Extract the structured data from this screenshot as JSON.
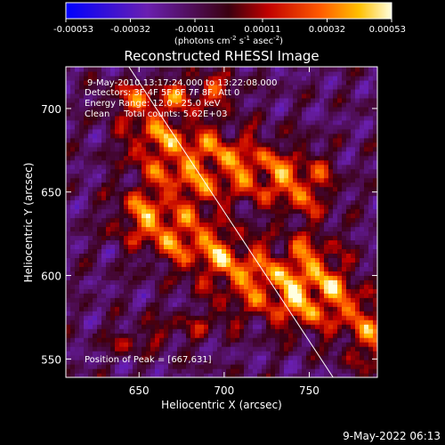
{
  "chart_data": {
    "type": "heatmap",
    "title": "Reconstructed RHESSI Image",
    "xlabel": "Heliocentric X (arcsec)",
    "ylabel": "Heliocentric Y (arcsec)",
    "xlim": [
      607,
      790
    ],
    "ylim": [
      539,
      725
    ],
    "x_ticks": [
      650,
      700,
      750
    ],
    "y_ticks": [
      550,
      600,
      650,
      700
    ],
    "colorbar": {
      "range": [
        -0.00053,
        0.00053
      ],
      "tick_values": [
        -0.00053,
        -0.00032,
        -0.00011,
        0.00011,
        0.00032,
        0.00053
      ],
      "tick_labels": [
        "-0.00053",
        "-0.00032",
        "-0.00011",
        "0.00011",
        "0.00032",
        "0.00053"
      ],
      "unit_label_parts": [
        "(photons cm",
        "-2",
        " s",
        "-1",
        " asec",
        "-2",
        ")"
      ]
    },
    "annotations": [
      "9-May-2010 13:17:24.000  to 13:22:08.000",
      "Detectors: 3F 4F 5F 6F 7F 8F, Att 0",
      "Energy Range: 12.0 - 25.0 keV",
      "Clean     Total counts: 5.62E+03"
    ],
    "peak_label": "Position of Peak = [667,631]",
    "peak": [
      667,
      631
    ],
    "limb_line": [
      [
        644,
        725
      ],
      [
        764,
        539
      ]
    ],
    "emission_bands": [
      {
        "x0": 660,
        "y0": 682,
        "x1": 745,
        "y1": 655,
        "width": 13,
        "amp": 0.0005
      },
      {
        "x0": 655,
        "y0": 636,
        "x1": 742,
        "y1": 585,
        "width": 13,
        "amp": 0.00053
      },
      {
        "x0": 668,
        "y0": 660,
        "x1": 690,
        "y1": 648,
        "width": 6,
        "amp": 0.0003
      },
      {
        "x0": 640,
        "y0": 705,
        "x1": 700,
        "y1": 712,
        "width": 7,
        "amp": 0.00035
      },
      {
        "x0": 750,
        "y0": 610,
        "x1": 790,
        "y1": 560,
        "width": 12,
        "amp": 0.00042
      },
      {
        "x0": 640,
        "y0": 560,
        "x1": 700,
        "y1": 575,
        "width": 7,
        "amp": 0.00018
      }
    ],
    "timestamp": "9-May-2022 06:13"
  }
}
